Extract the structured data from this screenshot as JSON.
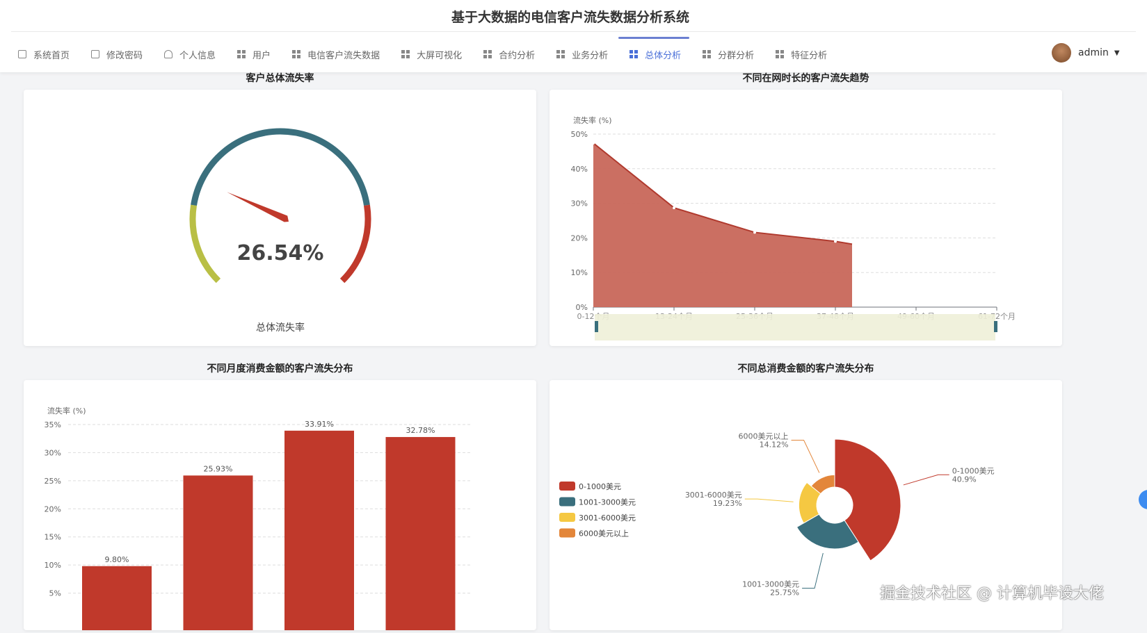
{
  "header": {
    "title": "基于大数据的电信客户流失数据分析系统"
  },
  "nav": [
    {
      "label": "系统首页",
      "icon": "home-icon"
    },
    {
      "label": "修改密码",
      "icon": "lock-icon"
    },
    {
      "label": "个人信息",
      "icon": "user-icon"
    },
    {
      "label": "用户",
      "icon": "grid-icon"
    },
    {
      "label": "电信客户流失数据",
      "icon": "grid-icon"
    },
    {
      "label": "大屏可视化",
      "icon": "grid-icon"
    },
    {
      "label": "合约分析",
      "icon": "grid-icon"
    },
    {
      "label": "业务分析",
      "icon": "grid-icon"
    },
    {
      "label": "总体分析",
      "icon": "grid-icon",
      "active": true
    },
    {
      "label": "分群分析",
      "icon": "grid-icon"
    },
    {
      "label": "特征分析",
      "icon": "grid-icon"
    }
  ],
  "user": {
    "name": "admin"
  },
  "sections": {
    "s1": "客户总体流失率",
    "s2": "不同在网时长的客户流失趋势",
    "s3": "不同月度消费金额的客户流失分布",
    "s4": "不同总消费金额的客户流失分布"
  },
  "watermark": "掘金技术社区 @ 计算机毕设大佬",
  "colors": {
    "red": "#c0392b",
    "teal": "#3a6f7d",
    "yellow": "#f5c842",
    "orange": "#e3863a",
    "gaugeGreen": "#b9bf45",
    "accent": "#4a6fd8"
  },
  "chart_data": [
    {
      "type": "gauge",
      "value": 26.54,
      "value_label": "26.54%",
      "title": "总体流失率",
      "min": 0,
      "max": 100
    },
    {
      "type": "area",
      "ylabel": "流失率 (%)",
      "ylim": [
        0,
        50
      ],
      "yticks": [
        "0%",
        "10%",
        "20%",
        "30%",
        "40%",
        "50%"
      ],
      "categories": [
        "0-12个月",
        "13-24个月",
        "25-36个月",
        "37-48个月",
        "49-60个月",
        "61-72个月"
      ],
      "values": [
        47.4,
        28.7,
        21.6,
        19.0,
        null,
        null
      ],
      "grid": true,
      "datazoom": true
    },
    {
      "type": "bar",
      "ylabel": "流失率 (%)",
      "ylim": [
        0,
        35
      ],
      "yticks": [
        "5%",
        "10%",
        "15%",
        "20%",
        "25%",
        "30%",
        "35%"
      ],
      "values": [
        9.8,
        25.93,
        33.91,
        32.78
      ],
      "labels": [
        "9.80%",
        "25.93%",
        "33.91%",
        "32.78%"
      ],
      "grid": true
    },
    {
      "type": "pie",
      "rose": true,
      "legend_position": "left",
      "slices": [
        {
          "name": "0-1000美元",
          "value": 40.9,
          "label": "40.9%"
        },
        {
          "name": "1001-3000美元",
          "value": 25.75,
          "label": "25.75%"
        },
        {
          "name": "3001-6000美元",
          "value": 19.23,
          "label": "19.23%"
        },
        {
          "name": "6000美元以上",
          "value": 14.12,
          "label": "14.12%"
        }
      ]
    }
  ]
}
